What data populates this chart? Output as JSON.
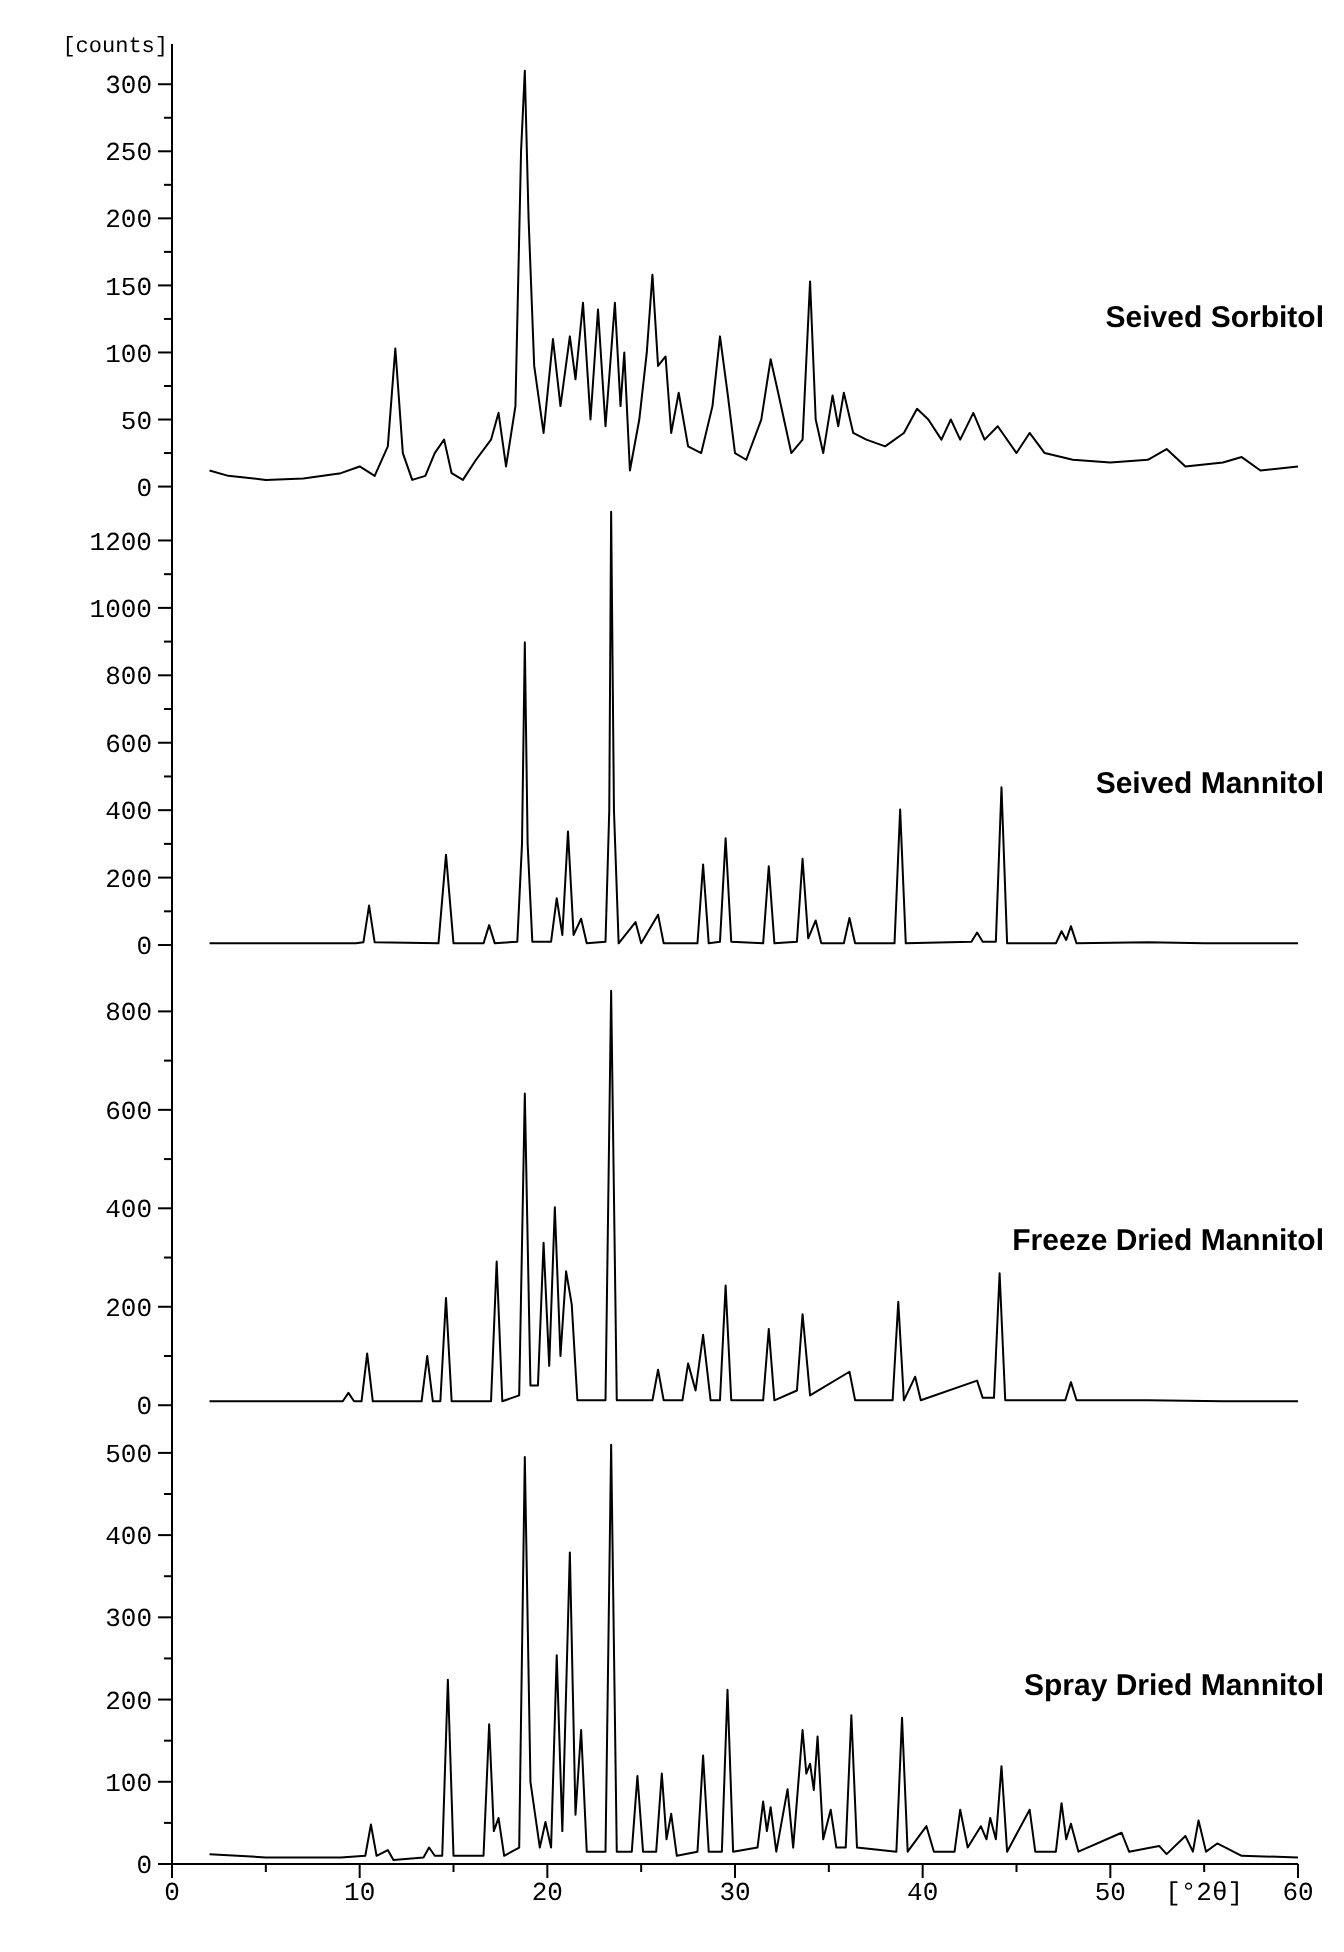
{
  "chart_data": [
    {
      "type": "line",
      "ylabel": "[counts]",
      "xlim": [
        0,
        60
      ],
      "ylim": [
        -10,
        330
      ],
      "tick_labels": "y",
      "yticks": [
        0,
        {
          "value": 25,
          "label": null
        },
        50,
        {
          "value": 75,
          "label": null
        },
        100,
        {
          "value": 125,
          "label": null
        },
        150,
        {
          "value": 175,
          "label": null
        },
        200,
        {
          "value": 225,
          "label": null
        },
        250,
        {
          "value": 275,
          "label": null
        },
        300
      ],
      "x": [
        2,
        3,
        5,
        7,
        9,
        10,
        10.8,
        11.5,
        11.9,
        12.3,
        12.8,
        13.5,
        14,
        14.5,
        14.9,
        15.5,
        16.2,
        17,
        17.4,
        17.8,
        18.3,
        18.6,
        18.8,
        19.0,
        19.3,
        19.8,
        20.3,
        20.7,
        21.2,
        21.5,
        21.9,
        22.3,
        22.7,
        23.1,
        23.6,
        23.9,
        24.1,
        24.4,
        24.9,
        25.3,
        25.6,
        25.9,
        26.3,
        26.6,
        27.0,
        27.5,
        28.2,
        28.8,
        29.2,
        29.6,
        30.0,
        30.6,
        31.4,
        31.9,
        32.3,
        33.0,
        33.6,
        34.0,
        34.3,
        34.7,
        35.2,
        35.5,
        35.8,
        36.3,
        37,
        38,
        39,
        39.7,
        40.3,
        41,
        41.5,
        42,
        42.7,
        43.3,
        44,
        45,
        45.7,
        46.5,
        48,
        50,
        52,
        53,
        54,
        56,
        57,
        58,
        60
      ],
      "series": [
        {
          "name": "Seived Sorbitol",
          "color": "#000000",
          "values": [
            12,
            8,
            5,
            6,
            10,
            15,
            8,
            30,
            103,
            25,
            5,
            8,
            25,
            35,
            10,
            5,
            20,
            35,
            55,
            15,
            60,
            250,
            310,
            200,
            90,
            40,
            110,
            60,
            112,
            80,
            137,
            50,
            132,
            45,
            137,
            60,
            100,
            12,
            50,
            100,
            158,
            90,
            97,
            40,
            70,
            30,
            25,
            60,
            112,
            70,
            25,
            20,
            50,
            95,
            70,
            25,
            35,
            153,
            50,
            25,
            68,
            45,
            70,
            40,
            35,
            30,
            40,
            58,
            50,
            35,
            50,
            35,
            55,
            35,
            45,
            25,
            40,
            25,
            20,
            18,
            20,
            28,
            15,
            18,
            22,
            12,
            15
          ]
        }
      ]
    },
    {
      "type": "line",
      "xlim": [
        0,
        60
      ],
      "ylim": [
        -80,
        1320
      ],
      "tick_labels": "y",
      "yticks": [
        0,
        {
          "value": 100,
          "label": null
        },
        200,
        {
          "value": 300,
          "label": null
        },
        400,
        {
          "value": 500,
          "label": null
        },
        600,
        {
          "value": 700,
          "label": null
        },
        800,
        {
          "value": 900,
          "label": null
        },
        1000,
        {
          "value": 1100,
          "label": null
        },
        1200
      ],
      "x": [
        2,
        9.8,
        10.2,
        10.5,
        10.8,
        14.2,
        14.6,
        15.0,
        16.6,
        16.9,
        17.2,
        18.4,
        18.65,
        18.8,
        18.95,
        19.2,
        20.2,
        20.5,
        20.8,
        21.1,
        21.4,
        21.8,
        22.1,
        23.1,
        23.3,
        23.4,
        23.55,
        23.8,
        24.7,
        25.0,
        25.9,
        26.2,
        28.0,
        28.3,
        28.6,
        29.2,
        29.5,
        29.8,
        31.5,
        31.8,
        32.1,
        33.3,
        33.6,
        33.9,
        34.3,
        34.6,
        35.8,
        36.1,
        36.4,
        38.5,
        38.8,
        39.1,
        42.6,
        42.9,
        43.2,
        43.9,
        44.2,
        44.5,
        47.1,
        47.4,
        47.65,
        47.9,
        48.2,
        52,
        55,
        60
      ],
      "series": [
        {
          "name": "Seived Mannitol",
          "color": "#000000",
          "values": [
            5,
            5,
            8,
            117,
            8,
            5,
            268,
            5,
            5,
            59,
            5,
            10,
            300,
            898,
            300,
            10,
            10,
            139,
            30,
            337,
            30,
            78,
            5,
            10,
            400,
            1285,
            400,
            5,
            68,
            5,
            90,
            5,
            5,
            239,
            5,
            10,
            317,
            10,
            5,
            234,
            5,
            10,
            256,
            20,
            73,
            5,
            5,
            80,
            5,
            5,
            402,
            5,
            10,
            37,
            10,
            10,
            468,
            5,
            5,
            41,
            15,
            56,
            5,
            8,
            5,
            5
          ]
        }
      ]
    },
    {
      "type": "line",
      "xlim": [
        0,
        60
      ],
      "ylim": [
        -30,
        880
      ],
      "tick_labels": "y",
      "yticks": [
        0,
        {
          "value": 100,
          "label": null
        },
        200,
        {
          "value": 300,
          "label": null
        },
        400,
        {
          "value": 500,
          "label": null
        },
        600,
        {
          "value": 700,
          "label": null
        },
        800
      ],
      "x": [
        2,
        9.1,
        9.4,
        9.7,
        10.1,
        10.4,
        10.7,
        13.3,
        13.6,
        13.9,
        14.3,
        14.6,
        14.9,
        17.0,
        17.3,
        17.6,
        18.5,
        18.8,
        19.1,
        19.5,
        19.8,
        20.1,
        20.4,
        20.7,
        21.0,
        21.3,
        21.6,
        23.1,
        23.4,
        23.7,
        25.6,
        25.9,
        26.2,
        27.2,
        27.5,
        27.9,
        28.3,
        28.7,
        29.2,
        29.5,
        29.8,
        31.5,
        31.8,
        32.1,
        33.3,
        33.6,
        34,
        36.1,
        36.4,
        38.4,
        38.7,
        39.0,
        39.6,
        39.9,
        42.9,
        43.2,
        43.8,
        44.1,
        44.4,
        47.6,
        47.9,
        48.2,
        52,
        56,
        60
      ],
      "series": [
        {
          "name": "Freeze Dried Mannitol",
          "color": "#000000",
          "values": [
            8,
            8,
            25,
            8,
            8,
            105,
            8,
            8,
            100,
            8,
            8,
            218,
            8,
            8,
            292,
            8,
            20,
            633,
            40,
            40,
            330,
            80,
            402,
            100,
            272,
            205,
            10,
            10,
            842,
            10,
            10,
            72,
            10,
            10,
            85,
            30,
            143,
            10,
            10,
            243,
            10,
            10,
            155,
            10,
            30,
            185,
            20,
            68,
            10,
            10,
            210,
            10,
            58,
            10,
            50,
            15,
            15,
            268,
            10,
            10,
            47,
            10,
            10,
            8,
            8
          ]
        }
      ]
    },
    {
      "type": "line",
      "xlabel": "[°2θ]",
      "xlim": [
        0,
        60
      ],
      "ylim": [
        0,
        540
      ],
      "xticks": [
        0,
        {
          "value": 5,
          "label": null
        },
        10,
        {
          "value": 15,
          "label": null
        },
        20,
        {
          "value": 25,
          "label": null
        },
        30,
        {
          "value": 35,
          "label": null
        },
        40,
        {
          "value": 45,
          "label": null
        },
        50,
        {
          "value": 55,
          "label": null
        },
        60
      ],
      "yticks": [
        0,
        {
          "value": 50,
          "label": null
        },
        100,
        {
          "value": 150,
          "label": null
        },
        200,
        {
          "value": 250,
          "label": null
        },
        300,
        {
          "value": 350,
          "label": null
        },
        400,
        {
          "value": 450,
          "label": null
        },
        500
      ],
      "x": [
        2,
        5,
        9,
        10.3,
        10.6,
        10.9,
        11.5,
        11.8,
        13.4,
        13.7,
        14.0,
        14.4,
        14.7,
        15.0,
        16.6,
        16.9,
        17.15,
        17.4,
        17.7,
        18.5,
        18.8,
        19.1,
        19.6,
        19.9,
        20.2,
        20.5,
        20.8,
        21.2,
        21.5,
        21.8,
        22.1,
        23.1,
        23.4,
        23.7,
        24.5,
        24.8,
        25.1,
        25.8,
        26.1,
        26.35,
        26.6,
        26.9,
        28.0,
        28.3,
        28.6,
        29.3,
        29.6,
        29.9,
        31.2,
        31.5,
        31.7,
        31.9,
        32.2,
        32.8,
        33.1,
        33.6,
        33.8,
        34.0,
        34.2,
        34.4,
        34.7,
        35.1,
        35.4,
        35.9,
        36.2,
        36.5,
        38.6,
        38.9,
        39.2,
        40.2,
        40.6,
        41.7,
        42.0,
        42.4,
        43.1,
        43.4,
        43.6,
        43.9,
        44.2,
        44.5,
        45.7,
        46.0,
        47.1,
        47.4,
        47.65,
        47.9,
        48.3,
        50.6,
        51,
        52.6,
        53,
        54.0,
        54.4,
        54.7,
        55.1,
        55.7,
        57,
        60
      ],
      "series": [
        {
          "name": "Spray Dried Mannitol",
          "color": "#000000",
          "values": [
            12,
            8,
            8,
            10,
            48,
            10,
            17,
            5,
            8,
            20,
            10,
            10,
            224,
            10,
            10,
            170,
            40,
            56,
            10,
            20,
            495,
            100,
            20,
            51,
            20,
            254,
            40,
            379,
            60,
            163,
            15,
            15,
            510,
            15,
            15,
            107,
            15,
            15,
            110,
            30,
            61,
            10,
            15,
            132,
            15,
            15,
            212,
            15,
            20,
            76,
            40,
            69,
            15,
            91,
            20,
            163,
            110,
            122,
            90,
            155,
            30,
            66,
            20,
            20,
            181,
            20,
            15,
            178,
            15,
            46,
            15,
            15,
            66,
            20,
            46,
            30,
            56,
            30,
            119,
            15,
            66,
            15,
            15,
            74,
            30,
            49,
            15,
            38,
            15,
            22,
            12,
            34,
            15,
            53,
            15,
            25,
            10,
            8
          ]
        }
      ]
    }
  ]
}
